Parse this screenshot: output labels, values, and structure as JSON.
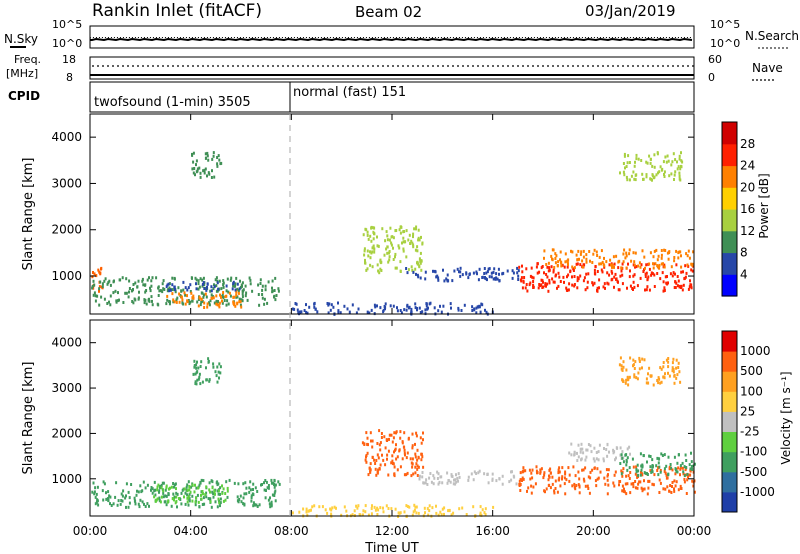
{
  "header": {
    "station": "Rankin Inlet (fitACF)",
    "beam": "Beam 02",
    "date": "03/Jan/2019"
  },
  "status_panels": {
    "nsky_label": "N.Sky",
    "nsearch_label": "N.Search",
    "left_top_tick": "10^5",
    "left_bottom_tick": "10^0",
    "right_top_tick": "10^5",
    "right_bottom_tick": "10^0",
    "freq_label_1": "Freq.",
    "freq_label_2": "[MHz]",
    "freq_tick_top": "18",
    "freq_tick_bottom": "8",
    "nave_label": "Nave",
    "nave_tick_top": "60",
    "nave_tick_bottom": "0",
    "cpid_label": "CPID",
    "cpid_1": "twofsound (1-min) 3505",
    "cpid_2": "normal (fast) 151"
  },
  "axes": {
    "ylabel": "Slant Range [km]",
    "xlabel": "Time UT",
    "yticks": [
      "1000",
      "2000",
      "3000",
      "4000"
    ],
    "xticks": [
      "00:00",
      "04:00",
      "08:00",
      "12:00",
      "16:00",
      "20:00",
      "00:00"
    ]
  },
  "power_scale": {
    "label": "Power [dB]",
    "ticks": [
      "4",
      "8",
      "12",
      "16",
      "20",
      "24",
      "28"
    ],
    "colors": [
      "#0000ff",
      "#2747a8",
      "#3f8f55",
      "#a8d040",
      "#ffd000",
      "#ff8000",
      "#ff2000",
      "#d00000"
    ]
  },
  "velocity_scale": {
    "label": "Velocity [m s⁻¹]",
    "ticks": [
      "1000",
      "500",
      "100",
      "25",
      "-25",
      "-100",
      "-500",
      "-1000"
    ],
    "colors": [
      "#1f3fa8",
      "#2f6f9f",
      "#3f9f5f",
      "#5fcf3f",
      "#c0c0c0",
      "#ffd040",
      "#ffa020",
      "#ff6010",
      "#e00000"
    ]
  },
  "chart_data": {
    "type": "heatmap",
    "x_range_hours": [
      0,
      24
    ],
    "y_range_km": [
      180,
      4500
    ],
    "cpid_change_hour": 8,
    "power_regions": [
      {
        "t": [
          0.0,
          0.5
        ],
        "r": [
          700,
          1300
        ],
        "color": "#ff6000"
      },
      {
        "t": [
          0.0,
          7.5
        ],
        "r": [
          400,
          1000
        ],
        "color": "#3f8f55"
      },
      {
        "t": [
          3.0,
          6.0
        ],
        "r": [
          350,
          700
        ],
        "color": "#ff8000"
      },
      {
        "t": [
          3.0,
          6.0
        ],
        "r": [
          700,
          900
        ],
        "color": "#2747a8"
      },
      {
        "t": [
          4.0,
          5.2
        ],
        "r": [
          3100,
          3700
        ],
        "color": "#3f8f55"
      },
      {
        "t": [
          8.0,
          16.0
        ],
        "r": [
          200,
          450
        ],
        "color": "#2747a8"
      },
      {
        "t": [
          10.8,
          13.2
        ],
        "r": [
          1100,
          2100
        ],
        "color": "#a8d040"
      },
      {
        "t": [
          12.5,
          17.0
        ],
        "r": [
          900,
          1200
        ],
        "color": "#2747a8"
      },
      {
        "t": [
          17.0,
          24.0
        ],
        "r": [
          700,
          1300
        ],
        "color": "#ff2000"
      },
      {
        "t": [
          18.0,
          24.0
        ],
        "r": [
          1200,
          1600
        ],
        "color": "#ff8000"
      },
      {
        "t": [
          21.0,
          23.5
        ],
        "r": [
          3100,
          3700
        ],
        "color": "#a8d040"
      }
    ],
    "velocity_regions": [
      {
        "t": [
          0.0,
          7.5
        ],
        "r": [
          400,
          1000
        ],
        "color": "#3f9f5f"
      },
      {
        "t": [
          2.5,
          5.5
        ],
        "r": [
          500,
          900
        ],
        "color": "#5fcf3f"
      },
      {
        "t": [
          4.0,
          5.2
        ],
        "r": [
          3100,
          3700
        ],
        "color": "#3f9f5f"
      },
      {
        "t": [
          8.0,
          16.0
        ],
        "r": [
          200,
          450
        ],
        "color": "#ffd040"
      },
      {
        "t": [
          10.8,
          13.2
        ],
        "r": [
          1100,
          2100
        ],
        "color": "#ff6010"
      },
      {
        "t": [
          13.0,
          17.0
        ],
        "r": [
          900,
          1200
        ],
        "color": "#c0c0c0"
      },
      {
        "t": [
          17.0,
          24.0
        ],
        "r": [
          700,
          1300
        ],
        "color": "#ff6010"
      },
      {
        "t": [
          19.0,
          21.5
        ],
        "r": [
          1400,
          1800
        ],
        "color": "#c0c0c0"
      },
      {
        "t": [
          21.0,
          24.0
        ],
        "r": [
          1100,
          1600
        ],
        "color": "#3f9f5f"
      },
      {
        "t": [
          21.0,
          23.5
        ],
        "r": [
          3100,
          3700
        ],
        "color": "#ffa020"
      }
    ]
  }
}
